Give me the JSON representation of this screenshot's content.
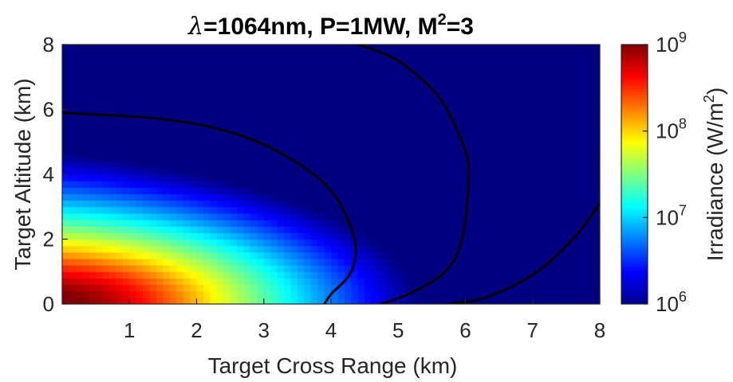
{
  "chart_data": {
    "type": "heatmap",
    "title": {
      "symbol": "λ",
      "text_before_sup": "=1064nm, P=1MW, M",
      "sup": "2",
      "text_after_sup": "=3"
    },
    "xlabel": "Target Cross Range (km)",
    "ylabel": "Target Altitude (km)",
    "xlim": [
      0,
      8
    ],
    "ylim": [
      0,
      8
    ],
    "xticks": [
      1,
      2,
      3,
      4,
      5,
      6,
      7,
      8
    ],
    "xtick_labels": [
      "1",
      "2",
      "3",
      "4",
      "5",
      "6",
      "7",
      "8"
    ],
    "yticks": [
      0,
      2,
      4,
      6,
      8
    ],
    "ytick_labels": [
      "0",
      "2",
      "4",
      "6",
      "8"
    ],
    "colorbar": {
      "label": {
        "text_before_sup": "Irradiance (W/m",
        "sup": "2",
        "text_after_sup": ")"
      },
      "scale": "log",
      "range": [
        1000000,
        1000000000
      ],
      "ticks": [
        {
          "value": 1000000,
          "base": "10",
          "exp": "6"
        },
        {
          "value": 10000000,
          "base": "10",
          "exp": "7"
        },
        {
          "value": 100000000,
          "base": "10",
          "exp": "8"
        },
        {
          "value": 1000000000,
          "base": "10",
          "exp": "9"
        }
      ],
      "colormap": "jet"
    },
    "contours": [
      {
        "name": "contour-1",
        "points": [
          [
            0,
            5.9
          ],
          [
            1.5,
            5.7
          ],
          [
            2.5,
            5.3
          ],
          [
            3.3,
            4.6
          ],
          [
            4.0,
            3.5
          ],
          [
            4.35,
            2.0
          ],
          [
            4.3,
            1.0
          ],
          [
            4.0,
            0.3
          ],
          [
            3.9,
            0.0
          ]
        ]
      },
      {
        "name": "contour-2",
        "points": [
          [
            4.4,
            8.0
          ],
          [
            5.0,
            7.5
          ],
          [
            5.6,
            6.4
          ],
          [
            5.95,
            5.0
          ],
          [
            6.05,
            4.0
          ],
          [
            5.95,
            2.0
          ],
          [
            5.7,
            1.0
          ],
          [
            5.2,
            0.35
          ],
          [
            4.75,
            0.0
          ]
        ]
      },
      {
        "name": "contour-3",
        "points": [
          [
            5.75,
            0.0
          ],
          [
            6.3,
            0.2
          ],
          [
            7.0,
            0.9
          ],
          [
            7.6,
            2.0
          ],
          [
            8.0,
            3.1
          ]
        ]
      }
    ]
  }
}
